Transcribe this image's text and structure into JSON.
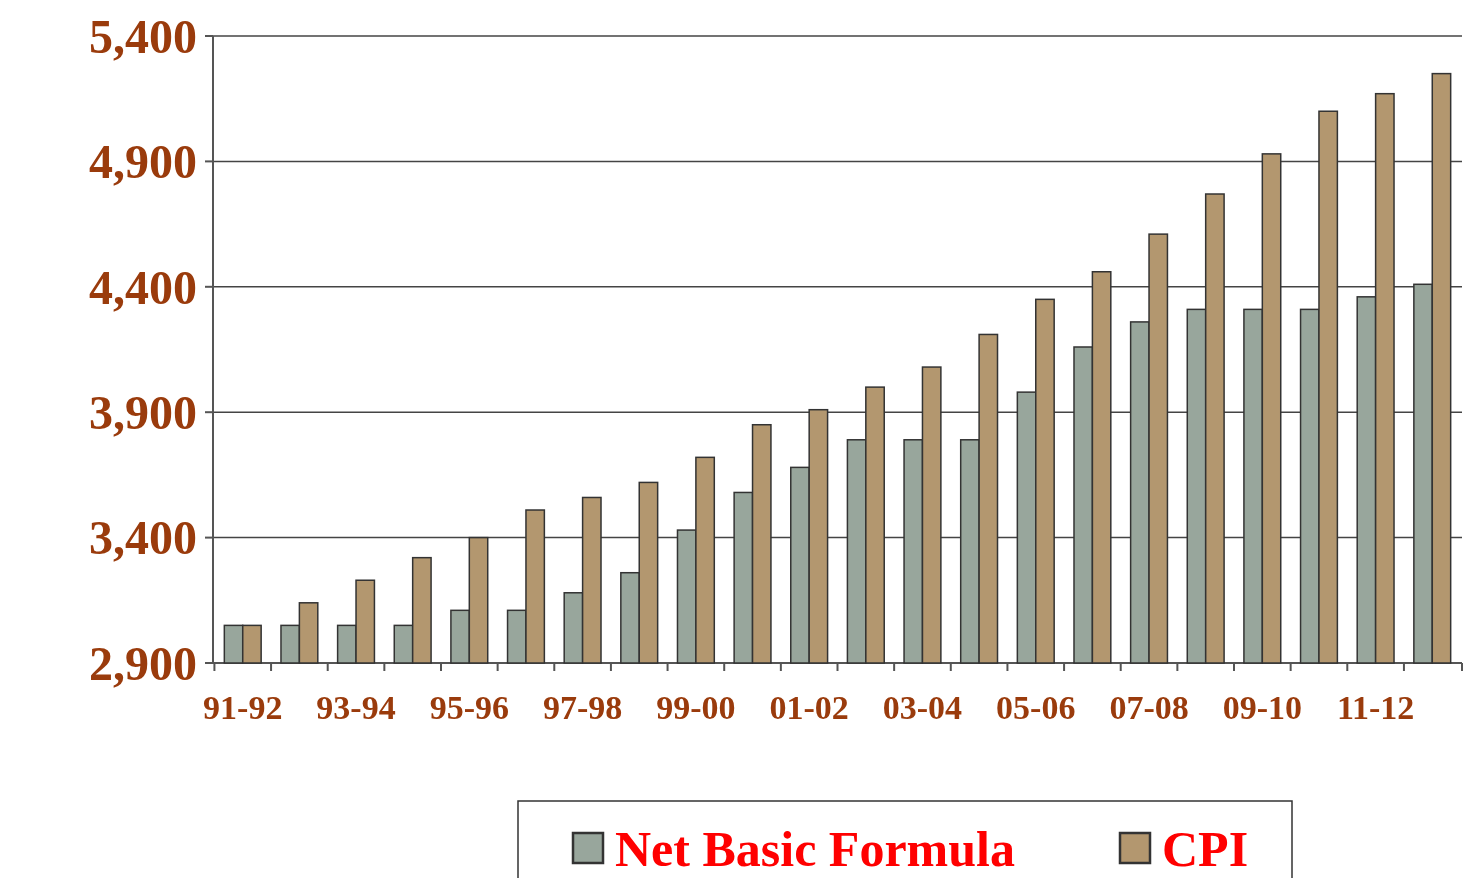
{
  "chart_data": {
    "type": "bar",
    "categories": [
      "91-92",
      null,
      "93-94",
      null,
      "95-96",
      null,
      "97-98",
      null,
      "99-00",
      null,
      "01-02",
      null,
      "03-04",
      null,
      "05-06",
      null,
      "07-08",
      null,
      "09-10",
      null,
      "11-12",
      null
    ],
    "series": [
      {
        "name": "Net Basic Formula",
        "color": "#98a69c",
        "values": [
          3050,
          3050,
          3050,
          3050,
          3110,
          3110,
          3180,
          3260,
          3430,
          3580,
          3680,
          3790,
          3790,
          3790,
          3980,
          4160,
          4260,
          4310,
          4310,
          4310,
          4360,
          4410
        ]
      },
      {
        "name": "CPI",
        "color": "#b3976f",
        "values": [
          3050,
          3140,
          3230,
          3320,
          3400,
          3510,
          3560,
          3620,
          3720,
          3850,
          3910,
          4000,
          4080,
          4210,
          4350,
          4460,
          4610,
          4770,
          4930,
          5100,
          5170,
          5250
        ]
      }
    ],
    "ylim": [
      2900,
      5400
    ],
    "yticks": [
      {
        "value": 2900,
        "label": "2,900"
      },
      {
        "value": 3400,
        "label": "3,400"
      },
      {
        "value": 3900,
        "label": "3,900"
      },
      {
        "value": 4400,
        "label": "4,400"
      },
      {
        "value": 4900,
        "label": "4,900"
      },
      {
        "value": 5400,
        "label": "5,400"
      }
    ],
    "grid": "y",
    "legend": "bottom"
  }
}
